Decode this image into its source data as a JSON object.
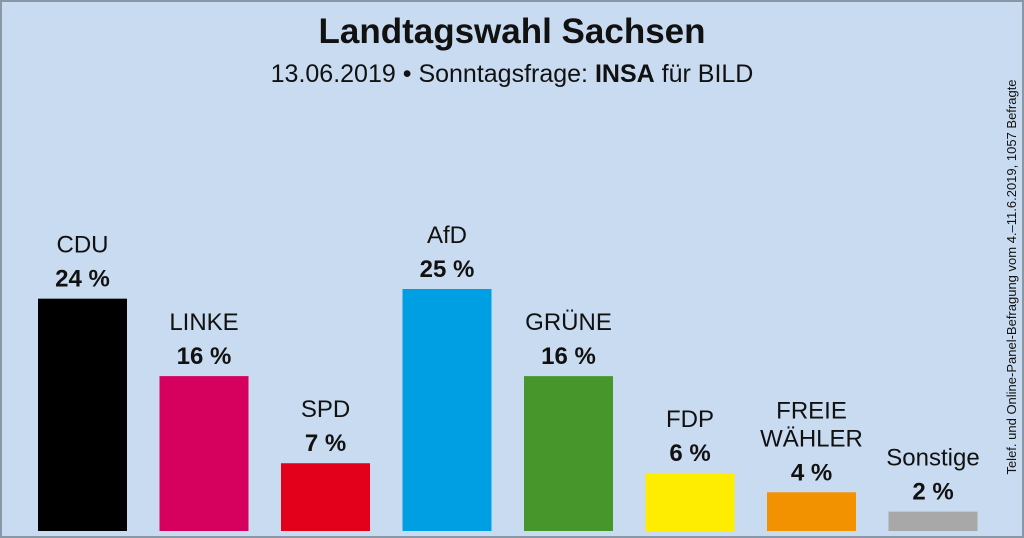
{
  "chart_data": {
    "type": "bar",
    "title": "Landtagswahl Sachsen",
    "subtitle_date": "13.06.2019",
    "subtitle_sep": "•",
    "subtitle_prefix": "Sonntagsfrage:",
    "subtitle_pollster": "INSA",
    "subtitle_suffix": "für BILD",
    "categories": [
      "CDU",
      "LINKE",
      "SPD",
      "AfD",
      "GRÜNE",
      "FDP",
      "FREIE WÄHLER",
      "Sonstige"
    ],
    "category_lines": [
      [
        "CDU"
      ],
      [
        "LINKE"
      ],
      [
        "SPD"
      ],
      [
        "AfD"
      ],
      [
        "GRÜNE"
      ],
      [
        "FDP"
      ],
      [
        "FREIE",
        "WÄHLER"
      ],
      [
        "Sonstige"
      ]
    ],
    "values": [
      24,
      16,
      7,
      25,
      16,
      6,
      4,
      2
    ],
    "value_labels": [
      "24 %",
      "16 %",
      "7 %",
      "25 %",
      "16 %",
      "6 %",
      "4 %",
      "2 %"
    ],
    "colors": [
      "#000000",
      "#d6005f",
      "#e3001b",
      "#009fe3",
      "#46962b",
      "#ffed00",
      "#f39200",
      "#a8a8a8"
    ],
    "unit": "%",
    "ylim": [
      0,
      25
    ],
    "grid": false,
    "source_note": "Telef. und Online-Panel-Befragung vom 4.–11.6.2019, 1057 Befragte"
  }
}
